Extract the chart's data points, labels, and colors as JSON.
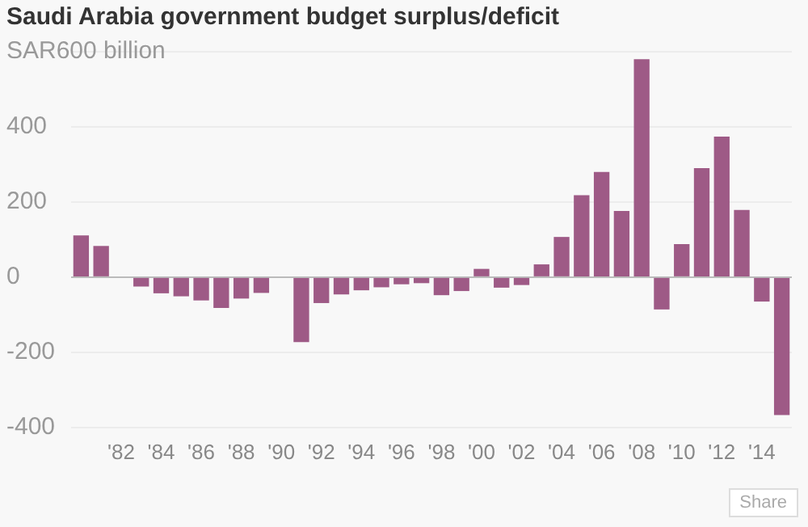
{
  "chart_data": {
    "type": "bar",
    "title": "Saudi Arabia government budget surplus/deficit",
    "categories": [
      null,
      null,
      "'82",
      null,
      "'84",
      null,
      "'86",
      null,
      "'88",
      null,
      "'90",
      null,
      "'92",
      null,
      "'94",
      null,
      "'96",
      null,
      "'98",
      null,
      "'00",
      null,
      "'02",
      null,
      "'04",
      null,
      "'06",
      null,
      "'08",
      null,
      "'10",
      null,
      "'12",
      null,
      "'14",
      null
    ],
    "values": [
      111,
      83,
      null,
      -25,
      -43,
      -51,
      -62,
      -82,
      -57,
      -42,
      null,
      -173,
      -69,
      -46,
      -35,
      -27,
      -19,
      -16,
      -48,
      -37,
      22,
      -28,
      -21,
      34,
      107,
      218,
      280,
      176,
      580,
      -86,
      88,
      290,
      374,
      179,
      -65,
      -367
    ],
    "color": "#9e5a86",
    "ylim": [
      -400,
      600
    ],
    "yticks": [
      -400,
      -200,
      0,
      200,
      400,
      {
        "value": 600,
        "label": "SAR600 billion"
      }
    ],
    "grid": "y",
    "annotations": [
      "Share"
    ]
  }
}
